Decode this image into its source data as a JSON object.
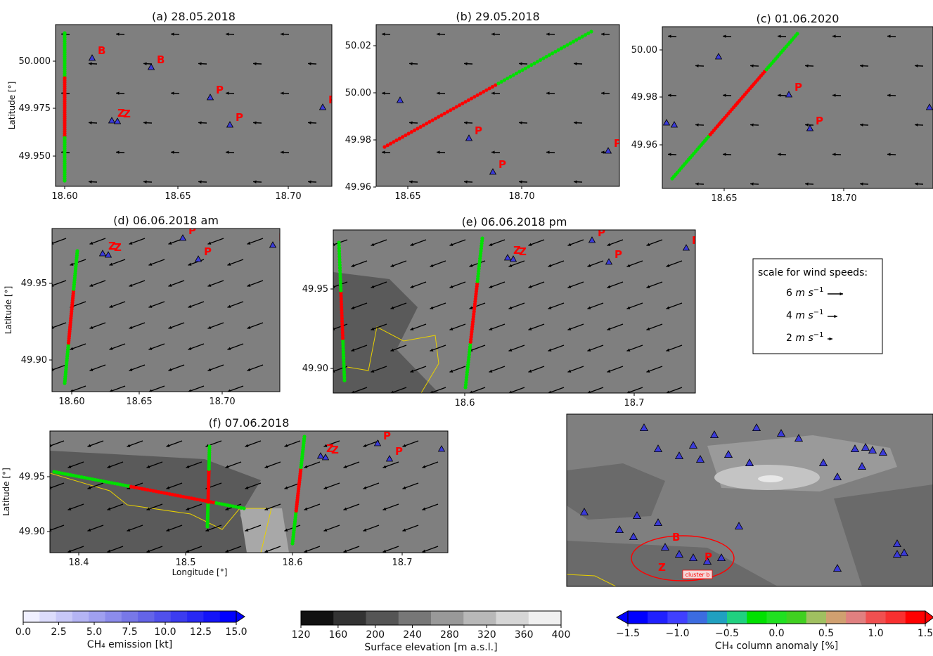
{
  "figure": {
    "panels": [
      {
        "id": "a",
        "title": "(a) 28.05.2018",
        "ylabel": "Latitude [°]",
        "xticks": [
          "18.60",
          "18.65",
          "18.70"
        ],
        "yticks": [
          "49.950",
          "49.975",
          "50.000"
        ]
      },
      {
        "id": "b",
        "title": "(b) 29.05.2018",
        "ylabel": "",
        "xticks": [
          "18.65",
          "18.70"
        ],
        "yticks": [
          "49.96",
          "49.98",
          "50.00",
          "50.02"
        ]
      },
      {
        "id": "c",
        "title": "(c) 01.06.2020",
        "ylabel": "",
        "xticks": [
          "18.65",
          "18.70"
        ],
        "yticks": [
          "49.96",
          "49.98",
          "50.00"
        ]
      },
      {
        "id": "d",
        "title": "(d) 06.06.2018 am",
        "ylabel": "Latitude [°]",
        "xticks": [
          "18.60",
          "18.65",
          "18.70"
        ],
        "yticks": [
          "49.90",
          "49.95"
        ]
      },
      {
        "id": "e",
        "title": "(e) 06.06.2018 pm",
        "ylabel": "",
        "xticks": [
          "18.6",
          "18.7"
        ],
        "yticks": [
          "49.90",
          "49.95"
        ]
      },
      {
        "id": "f",
        "title": "(f) 07.06.2018",
        "ylabel": "Latitude [°]",
        "xlabel": "Longitude [°]",
        "xticks": [
          "18.4",
          "18.5",
          "18.6",
          "18.7"
        ],
        "yticks": [
          "49.90",
          "49.95"
        ]
      },
      {
        "id": "overview",
        "title": "",
        "annotation": "cluster b"
      }
    ],
    "source_labels": [
      "B",
      "P",
      "Z"
    ],
    "wind_scale": {
      "title": "scale for wind speeds:",
      "entries": [
        {
          "value": "6",
          "unit": "m s",
          "exp": "−1"
        },
        {
          "value": "4",
          "unit": "m s",
          "exp": "−1"
        },
        {
          "value": "2",
          "unit": "m s",
          "exp": "−1"
        }
      ]
    },
    "colorbars": [
      {
        "name": "emission",
        "label": "CH₄ emission [kt]",
        "ticks": [
          "0.0",
          "2.5",
          "5.0",
          "7.5",
          "10.0",
          "12.5",
          "15.0"
        ]
      },
      {
        "name": "elevation",
        "label": "Surface elevation [m a.s.l.]",
        "ticks": [
          "120",
          "160",
          "200",
          "240",
          "280",
          "320",
          "360",
          "400"
        ]
      },
      {
        "name": "anomaly",
        "label": "CH₄ column anomaly [%]",
        "ticks": [
          "−1.5",
          "−1.0",
          "−0.5",
          "0.0",
          "0.5",
          "1.0",
          "1.5"
        ]
      }
    ],
    "colors": {
      "map_background": "#7f7f7f",
      "low_elevation": "#5a5a5a",
      "border_line": "#e8d000",
      "high_anomaly": "#ff0000",
      "low_anomaly": "#00e000",
      "source_marker": "#3b3bd8",
      "label_red": "#ff0000"
    }
  },
  "chart_data": {
    "type": "scatter",
    "description_of_content": "",
    "panels": [
      {
        "id": "a",
        "xlim": [
          18.595,
          18.74
        ],
        "ylim": [
          49.935,
          50.015
        ],
        "track": {
          "lon": [
            18.605,
            18.605
          ],
          "lat": [
            49.938,
            50.013
          ]
        }
      },
      {
        "id": "b",
        "xlim": [
          18.64,
          18.74
        ],
        "ylim": [
          49.96,
          50.03
        ],
        "track": {
          "lon": [
            18.643,
            18.728
          ],
          "lat": [
            49.977,
            50.026
          ]
        }
      },
      {
        "id": "c",
        "xlim": [
          18.62,
          18.74
        ],
        "ylim": [
          49.94,
          50.01
        ],
        "track": {
          "lon": [
            18.628,
            18.668
          ],
          "lat": [
            49.945,
            50.007
          ]
        }
      },
      {
        "id": "d",
        "xlim": [
          18.59,
          18.74
        ],
        "ylim": [
          49.88,
          49.985
        ],
        "track": {
          "lon": [
            18.601,
            18.606
          ],
          "lat": [
            49.884,
            49.971
          ]
        }
      },
      {
        "id": "e",
        "xlim": [
          18.515,
          18.74
        ],
        "ylim": [
          49.885,
          49.985
        ],
        "track": {
          "lon": [
            18.603,
            18.611
          ],
          "lat": [
            49.889,
            49.98
          ]
        }
      },
      {
        "id": "f",
        "xlim": [
          18.375,
          18.74
        ],
        "ylim": [
          49.88,
          49.99
        ],
        "track": {
          "lon": [
            18.527,
            18.532
          ],
          "lat": [
            49.905,
            49.985
          ]
        }
      }
    ],
    "wind_scale_ms": [
      6,
      4,
      2
    ],
    "emission_range_kt": [
      0,
      15
    ],
    "elevation_range_m": [
      120,
      400
    ],
    "anomaly_range_pct": [
      -1.5,
      1.5
    ]
  }
}
